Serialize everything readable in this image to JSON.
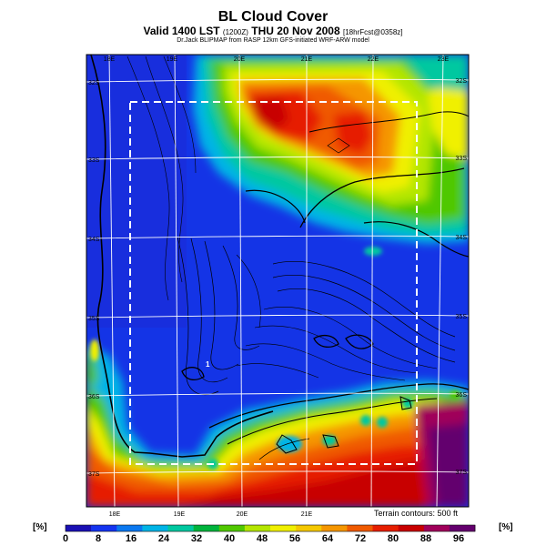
{
  "header": {
    "title": "BL Cloud Cover",
    "subtitle_main": "Valid 1400 LST",
    "subtitle_time_small": "(1200Z)",
    "subtitle_day": "THU 20 Nov 2008",
    "subtitle_tail_small": "[18hrFcst@0358z]",
    "credit": "Dr.Jack BLIPMAP from RASP 12km GFS-initiated WRF-ARW model"
  },
  "map": {
    "lon_labels_top": [
      "18E",
      "19E",
      "20E",
      "21E",
      "22E",
      "23E"
    ],
    "lon_labels_bottom": [
      "18E",
      "19E",
      "20E",
      "21E"
    ],
    "lat_labels_left": [
      "32S",
      "33S",
      "34S",
      "35S",
      "36S",
      "37S"
    ],
    "lat_labels_right": [
      "32S",
      "33S",
      "34S",
      "35S",
      "36S",
      "37S"
    ],
    "terrain_note": "Terrain contours: 500 ft",
    "field_label": "1"
  },
  "legend": {
    "unit": "[%]",
    "ticks": [
      "0",
      "8",
      "16",
      "24",
      "32",
      "40",
      "48",
      "56",
      "64",
      "72",
      "80",
      "88",
      "96"
    ],
    "colors": [
      "#1a10b4",
      "#1434f0",
      "#0a78f0",
      "#00b4e6",
      "#00c8a0",
      "#00b43c",
      "#50c800",
      "#b4e600",
      "#f0f000",
      "#f5c800",
      "#f59600",
      "#f05a00",
      "#e61e00",
      "#c80000",
      "#a0005a",
      "#64006e"
    ]
  }
}
